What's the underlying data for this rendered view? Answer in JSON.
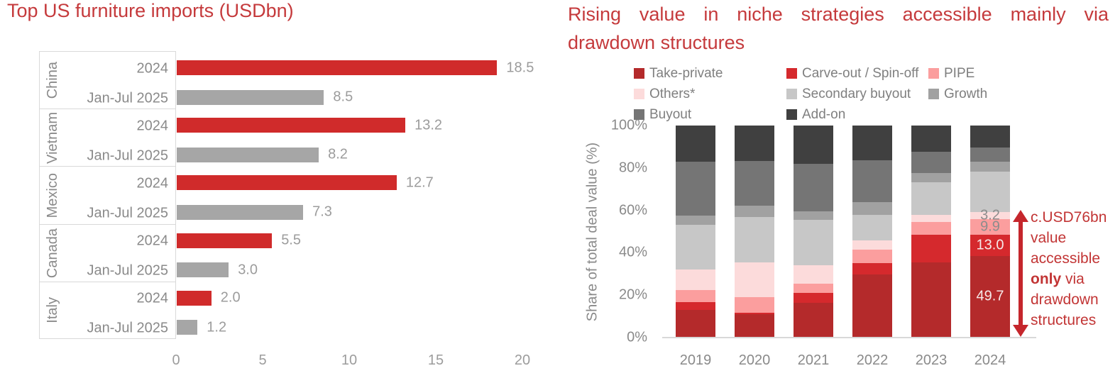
{
  "left_chart": {
    "title": "Top US furniture imports (USDbn)"
  },
  "right_chart": {
    "title_line1": "Rising value in niche strategies accessible mainly via",
    "title_line2": "drawdown structures",
    "ylabel": "Share of total deal value (%)",
    "annotation_lines": [
      "c.USD76bn",
      "value",
      "accessible",
      "only via",
      "drawdown",
      "structures"
    ],
    "annotation_bold_word": "only"
  },
  "colors": {
    "title_red": "#c53a3c",
    "annotation_red": "#c23535",
    "arrow_red": "#c5262c",
    "axis_text_gray": "#8a8a8a",
    "value_text_gray": "#9c9c9c"
  },
  "chart_data": [
    {
      "type": "bar",
      "orientation": "horizontal",
      "title": "Top US furniture imports (USDbn)",
      "categories": [
        "China",
        "Vietnam",
        "Mexico",
        "Canada",
        "Italy"
      ],
      "series": [
        {
          "name": "2024",
          "color": "#d02b2b",
          "values": [
            18.5,
            13.2,
            12.7,
            5.5,
            2.0
          ]
        },
        {
          "name": "Jan-Jul 2025",
          "color": "#a6a6a6",
          "values": [
            8.5,
            8.2,
            7.3,
            3.0,
            1.2
          ]
        }
      ],
      "xlim": [
        0,
        20
      ],
      "x_ticks": [
        0,
        5,
        10,
        15,
        20
      ],
      "grid": false,
      "data_labels": true
    },
    {
      "type": "bar",
      "stacked": true,
      "normalized": true,
      "title": "Rising value in niche strategies accessible mainly via drawdown structures",
      "categories": [
        "2019",
        "2020",
        "2021",
        "2022",
        "2023",
        "2024"
      ],
      "ylabel": "Share of total deal value (%)",
      "ylim": [
        0,
        100
      ],
      "y_ticks": [
        "0%",
        "20%",
        "40%",
        "60%",
        "80%",
        "100%"
      ],
      "legend_order": [
        "Take-private",
        "Carve-out / Spin-off",
        "PIPE",
        "Others*",
        "Secondary buyout",
        "Growth",
        "Buyout",
        "Add-on"
      ],
      "legend_position": "top",
      "series": [
        {
          "name": "Take-private",
          "color": "#b42a2b",
          "values": [
            12.9,
            10.9,
            16.5,
            29.8,
            35.5,
            38.6
          ]
        },
        {
          "name": "Carve-out / Spin-off",
          "color": "#d5292d",
          "values": [
            3.9,
            0.7,
            4.5,
            5.4,
            12.9,
            10.0
          ]
        },
        {
          "name": "PIPE",
          "color": "#fb9e9e",
          "values": [
            5.6,
            7.5,
            4.3,
            6.2,
            6.2,
            7.3
          ]
        },
        {
          "name": "Others*",
          "color": "#fcdbdb",
          "values": [
            9.7,
            16.2,
            8.7,
            4.5,
            3.4,
            3.3
          ]
        },
        {
          "name": "Secondary buyout",
          "color": "#c7c7c7",
          "values": [
            21.0,
            21.5,
            21.5,
            11.8,
            15.1,
            19.2
          ]
        },
        {
          "name": "Growth",
          "color": "#a1a1a1",
          "values": [
            4.5,
            5.4,
            3.9,
            6.2,
            4.5,
            4.5
          ]
        },
        {
          "name": "Buyout",
          "color": "#757575",
          "values": [
            25.2,
            21.0,
            22.7,
            19.6,
            10.1,
            6.7
          ]
        },
        {
          "name": "Add-on",
          "color": "#404040",
          "values": [
            17.2,
            16.8,
            17.9,
            16.5,
            12.3,
            10.4
          ]
        }
      ],
      "segment_value_labels": [
        {
          "category": "2024",
          "series": "Take-private",
          "text": "49.7",
          "text_color": "#f6e9e9"
        },
        {
          "category": "2024",
          "series": "Carve-out / Spin-off",
          "text": "13.0",
          "text_color": "#f6e9e9"
        },
        {
          "category": "2024",
          "series": "PIPE",
          "text": "9.9",
          "text_color": "#8c8c8c"
        },
        {
          "category": "2024",
          "series": "Others*",
          "text": "3.2",
          "text_color": "#8c8c8c"
        }
      ],
      "annotation": "c.USD76bn value accessible only via drawdown structures"
    }
  ]
}
